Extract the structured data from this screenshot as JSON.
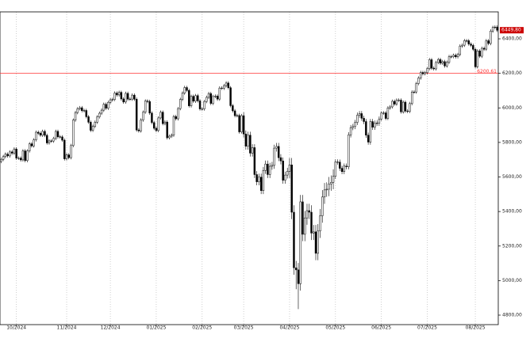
{
  "chart_data": {
    "type": "candlestick",
    "categories": [
      null,
      null,
      null,
      null,
      null,
      null,
      null,
      "10/2024",
      null,
      null,
      null,
      null,
      null,
      null,
      null,
      null,
      null,
      null,
      null,
      null,
      null,
      null,
      null,
      null,
      null,
      null,
      null,
      null,
      null,
      null,
      "11/2024",
      null,
      null,
      null,
      null,
      null,
      null,
      null,
      null,
      null,
      null,
      null,
      null,
      null,
      null,
      null,
      null,
      null,
      null,
      null,
      "12/2024",
      null,
      null,
      null,
      null,
      null,
      null,
      null,
      null,
      null,
      null,
      null,
      null,
      null,
      null,
      null,
      null,
      null,
      null,
      null,
      null,
      "01/2025",
      null,
      null,
      null,
      null,
      null,
      null,
      null,
      null,
      null,
      null,
      null,
      null,
      null,
      null,
      null,
      null,
      null,
      null,
      null,
      null,
      "02/2025",
      null,
      null,
      null,
      null,
      null,
      null,
      null,
      null,
      null,
      null,
      null,
      null,
      null,
      null,
      null,
      null,
      null,
      null,
      "03/2025",
      null,
      null,
      null,
      null,
      null,
      null,
      null,
      null,
      null,
      null,
      null,
      null,
      null,
      null,
      null,
      null,
      null,
      null,
      null,
      null,
      "04/2025",
      null,
      null,
      null,
      null,
      null,
      null,
      null,
      null,
      null,
      null,
      null,
      null,
      null,
      null,
      null,
      null,
      null,
      null,
      null,
      null,
      "05/2025",
      null,
      null,
      null,
      null,
      null,
      null,
      null,
      null,
      null,
      null,
      null,
      null,
      null,
      null,
      null,
      null,
      null,
      null,
      null,
      null,
      "06/2025",
      null,
      null,
      null,
      null,
      null,
      null,
      null,
      null,
      null,
      null,
      null,
      null,
      null,
      null,
      null,
      null,
      null,
      null,
      null,
      null,
      "07/2025",
      null,
      null,
      null,
      null,
      null,
      null,
      null,
      null,
      null,
      null,
      null,
      null,
      null,
      null,
      null,
      null,
      null,
      null,
      null,
      null,
      null,
      "08/2025",
      null,
      null,
      null,
      null,
      null,
      null,
      null,
      null,
      null,
      null
    ],
    "open": [
      5690,
      5702,
      5718,
      5732,
      5722,
      5745,
      5738,
      5762,
      5709,
      5709,
      5699,
      5751,
      5695,
      5751,
      5792,
      5780,
      5815,
      5859,
      5853,
      5842,
      5864,
      5841,
      5797,
      5809,
      5808,
      5823,
      5864,
      5833,
      5832,
      5813,
      5705,
      5728,
      5712,
      5782,
      5929,
      5973,
      5995,
      6001,
      5984,
      5985,
      5949,
      5917,
      5870,
      5893,
      5917,
      5948,
      5969,
      5987,
      6021,
      5998,
      6032,
      6047,
      6049,
      6086,
      6075,
      6090,
      6052,
      6034,
      6084,
      6051,
      6051,
      6074,
      6050,
      5872,
      5867,
      5930,
      5975,
      6040,
      6037,
      5970,
      5915,
      5882,
      5869,
      5942,
      5975,
      5909,
      5918,
      5827,
      5836,
      5842,
      5950,
      5937,
      5996,
      6049,
      6086,
      6118,
      6101,
      6012,
      6067,
      6039,
      6071,
      6041,
      5994,
      5994,
      6037,
      6061,
      6083,
      6026,
      6066,
      6068,
      6051,
      6115,
      6114,
      6129,
      6144,
      6117,
      6013,
      5983,
      5955,
      5956,
      5861,
      5955,
      5849,
      5778,
      5842,
      5738,
      5770,
      5614,
      5572,
      5599,
      5521,
      5638,
      5675,
      5614,
      5662,
      5667,
      5767,
      5777,
      5712,
      5693,
      5581,
      5611,
      5633,
      5670,
      5396,
      5074,
      5062,
      4982,
      5456,
      5268,
      5363,
      5405,
      5396,
      5275,
      5282,
      5158,
      5287,
      5375,
      5484,
      5525,
      5529,
      5560,
      5569,
      5604,
      5687,
      5686,
      5650,
      5631,
      5663,
      5659,
      5844,
      5886,
      5892,
      5916,
      5958,
      5967,
      5940,
      5921,
      5842,
      5802,
      5921,
      5888,
      5912,
      5911,
      5935,
      5970,
      5971,
      5939,
      6000,
      6006,
      6038,
      6022,
      6045,
      6045,
      5977,
      6033,
      5982,
      5980,
      6025,
      6092,
      6092,
      6141,
      6173,
      6205,
      6198,
      6204,
      6227,
      6279,
      6230,
      6226,
      6263,
      6280,
      6259,
      6268,
      6243,
      6264,
      6297,
      6297,
      6305,
      6296,
      6309,
      6358,
      6363,
      6389,
      6389,
      6370,
      6362,
      6339,
      6238,
      6330,
      6299,
      6345,
      6340,
      6389,
      6373,
      6445,
      6466,
      6468
    ],
    "high": [
      5712,
      5728,
      5742,
      5742,
      5755,
      5755,
      5772,
      5772,
      5719,
      5719,
      5761,
      5761,
      5761,
      5802,
      5802,
      5825,
      5869,
      5869,
      5863,
      5874,
      5874,
      5851,
      5819,
      5819,
      5833,
      5874,
      5874,
      5843,
      5842,
      5823,
      5738,
      5738,
      5792,
      5939,
      5983,
      6005,
      6011,
      6011,
      5995,
      5995,
      5959,
      5927,
      5903,
      5927,
      5958,
      5979,
      5997,
      6031,
      6031,
      6042,
      6057,
      6059,
      6096,
      6096,
      6100,
      6100,
      6062,
      6094,
      6094,
      6061,
      6084,
      6084,
      6060,
      5882,
      5940,
      5985,
      6050,
      6050,
      6047,
      5980,
      5925,
      5892,
      5952,
      5985,
      5985,
      5928,
      5928,
      5846,
      5852,
      5960,
      5960,
      6006,
      6059,
      6096,
      6128,
      6128,
      6111,
      6077,
      6077,
      6081,
      6081,
      6051,
      6004,
      6047,
      6071,
      6093,
      6093,
      6076,
      6078,
      6078,
      6125,
      6125,
      6139,
      6154,
      6154,
      6127,
      6023,
      5993,
      5966,
      5966,
      5965,
      5975,
      5869,
      5862,
      5862,
      5790,
      5790,
      5634,
      5619,
      5619,
      5658,
      5695,
      5695,
      5682,
      5687,
      5787,
      5797,
      5797,
      5732,
      5713,
      5631,
      5653,
      5710,
      5710,
      5436,
      5114,
      5102,
      5496,
      5496,
      5403,
      5445,
      5445,
      5436,
      5322,
      5322,
      5327,
      5415,
      5524,
      5565,
      5569,
      5600,
      5609,
      5644,
      5702,
      5702,
      5701,
      5665,
      5678,
      5678,
      5859,
      5901,
      5907,
      5931,
      5973,
      5982,
      5982,
      5955,
      5936,
      5857,
      5936,
      5936,
      5927,
      5927,
      5950,
      5980,
      5981,
      5981,
      6010,
      6016,
      6048,
      6048,
      6055,
      6055,
      6055,
      6043,
      6043,
      5992,
      6035,
      6102,
      6102,
      6151,
      6183,
      6215,
      6215,
      6214,
      6237,
      6289,
      6289,
      6240,
      6273,
      6290,
      6290,
      6278,
      6278,
      6274,
      6307,
      6307,
      6315,
      6315,
      6319,
      6368,
      6373,
      6399,
      6399,
      6399,
      6380,
      6372,
      6349,
      6340,
      6340,
      6355,
      6355,
      6399,
      6399,
      6455,
      6476,
      6478,
      6478
    ],
    "low": [
      5680,
      5692,
      5708,
      5712,
      5712,
      5728,
      5728,
      5699,
      5699,
      5689,
      5689,
      5685,
      5685,
      5741,
      5770,
      5770,
      5805,
      5843,
      5832,
      5832,
      5831,
      5787,
      5787,
      5798,
      5798,
      5813,
      5823,
      5822,
      5803,
      5695,
      5695,
      5702,
      5702,
      5772,
      5919,
      5963,
      5985,
      5974,
      5974,
      5939,
      5907,
      5860,
      5860,
      5883,
      5907,
      5938,
      5959,
      5977,
      5988,
      5988,
      6022,
      6037,
      6039,
      6065,
      6065,
      6042,
      6024,
      6024,
      6041,
      6041,
      6041,
      6040,
      5862,
      5857,
      5857,
      5920,
      5965,
      6027,
      5960,
      5905,
      5872,
      5859,
      5859,
      5932,
      5899,
      5899,
      5817,
      5817,
      5826,
      5832,
      5927,
      5927,
      5986,
      6039,
      6076,
      6091,
      6002,
      6002,
      6029,
      6029,
      6031,
      5984,
      5984,
      5984,
      6027,
      6051,
      6016,
      6016,
      6056,
      6041,
      6041,
      6104,
      6104,
      6119,
      6107,
      6003,
      5973,
      5945,
      5945,
      5851,
      5851,
      5829,
      5758,
      5758,
      5718,
      5718,
      5594,
      5552,
      5552,
      5501,
      5501,
      5618,
      5594,
      5594,
      5642,
      5647,
      5747,
      5692,
      5673,
      5561,
      5561,
      5591,
      5593,
      5356,
      5034,
      4950,
      4835,
      4942,
      5228,
      5228,
      5323,
      5356,
      5235,
      5235,
      5118,
      5118,
      5247,
      5335,
      5444,
      5485,
      5489,
      5520,
      5529,
      5589,
      5671,
      5635,
      5616,
      5616,
      5644,
      5644,
      5829,
      5871,
      5877,
      5901,
      5943,
      5925,
      5906,
      5827,
      5787,
      5787,
      5873,
      5873,
      5896,
      5896,
      5925,
      5960,
      5929,
      5929,
      5990,
      5996,
      6012,
      6012,
      6035,
      5967,
      5967,
      5972,
      5970,
      5970,
      6015,
      6082,
      6082,
      6131,
      6163,
      6188,
      6188,
      6194,
      6217,
      6220,
      6216,
      6216,
      6253,
      6249,
      6249,
      6233,
      6233,
      6254,
      6287,
      6287,
      6286,
      6286,
      6299,
      6348,
      6353,
      6379,
      6360,
      6352,
      6329,
      6228,
      6228,
      6289,
      6289,
      6330,
      6330,
      6363,
      6363,
      6435,
      6456,
      6439.8
    ],
    "close": [
      5702,
      5718,
      5732,
      5722,
      5745,
      5738,
      5762,
      5709,
      5709,
      5699,
      5751,
      5695,
      5751,
      5792,
      5780,
      5815,
      5859,
      5853,
      5842,
      5864,
      5841,
      5797,
      5809,
      5808,
      5823,
      5864,
      5833,
      5832,
      5813,
      5705,
      5728,
      5712,
      5782,
      5929,
      5973,
      5995,
      6001,
      5984,
      5985,
      5949,
      5917,
      5870,
      5893,
      5917,
      5948,
      5969,
      5987,
      6021,
      5998,
      6032,
      6047,
      6049,
      6086,
      6075,
      6090,
      6052,
      6034,
      6084,
      6051,
      6051,
      6074,
      6050,
      5872,
      5867,
      5930,
      5975,
      6040,
      6037,
      5970,
      5915,
      5882,
      5869,
      5942,
      5975,
      5909,
      5918,
      5827,
      5836,
      5842,
      5950,
      5937,
      5996,
      6049,
      6086,
      6118,
      6101,
      6012,
      6067,
      6039,
      6071,
      6041,
      5994,
      5994,
      6037,
      6061,
      6083,
      6026,
      6066,
      6068,
      6051,
      6115,
      6114,
      6129,
      6144,
      6117,
      6013,
      5983,
      5955,
      5956,
      5861,
      5955,
      5849,
      5778,
      5842,
      5738,
      5770,
      5614,
      5572,
      5599,
      5521,
      5638,
      5675,
      5614,
      5662,
      5667,
      5767,
      5777,
      5712,
      5693,
      5581,
      5611,
      5633,
      5670,
      5396,
      5074,
      5062,
      4982,
      5456,
      5268,
      5363,
      5405,
      5396,
      5275,
      5282,
      5158,
      5287,
      5375,
      5484,
      5525,
      5529,
      5560,
      5569,
      5604,
      5687,
      5686,
      5650,
      5631,
      5663,
      5659,
      5844,
      5886,
      5892,
      5916,
      5958,
      5967,
      5940,
      5921,
      5842,
      5802,
      5921,
      5888,
      5912,
      5911,
      5935,
      5970,
      5971,
      5939,
      6000,
      6006,
      6038,
      6022,
      6045,
      6045,
      5977,
      6033,
      5982,
      5980,
      6025,
      6092,
      6092,
      6141,
      6173,
      6205,
      6198,
      6204,
      6227,
      6279,
      6230,
      6226,
      6263,
      6280,
      6259,
      6268,
      6243,
      6264,
      6297,
      6297,
      6305,
      6296,
      6309,
      6358,
      6363,
      6389,
      6389,
      6370,
      6362,
      6339,
      6238,
      6330,
      6299,
      6345,
      6340,
      6389,
      6373,
      6445,
      6466,
      6468,
      6449.8
    ],
    "ylim": [
      4745,
      6556
    ],
    "yticks": [
      {
        "value": 4800,
        "label": "4800,00"
      },
      {
        "value": 5000,
        "label": "5000,00"
      },
      {
        "value": 5200,
        "label": "5200,00"
      },
      {
        "value": 5400,
        "label": "5400,00"
      },
      {
        "value": 5600,
        "label": "5600,00"
      },
      {
        "value": 5800,
        "label": "5800,00"
      },
      {
        "value": 6000,
        "label": "6000,00"
      },
      {
        "value": 6200,
        "label": "6200,00"
      },
      {
        "value": 6400,
        "label": "6400,00"
      }
    ],
    "reference_line": {
      "value": 6200.61,
      "label": "6200,61",
      "color": "#ff3333"
    },
    "last_price": {
      "value": 6449.8,
      "label": "6449,80",
      "color": "#cc0000"
    },
    "up_color": "#ffffff",
    "down_color": "#000000",
    "grid": true
  }
}
